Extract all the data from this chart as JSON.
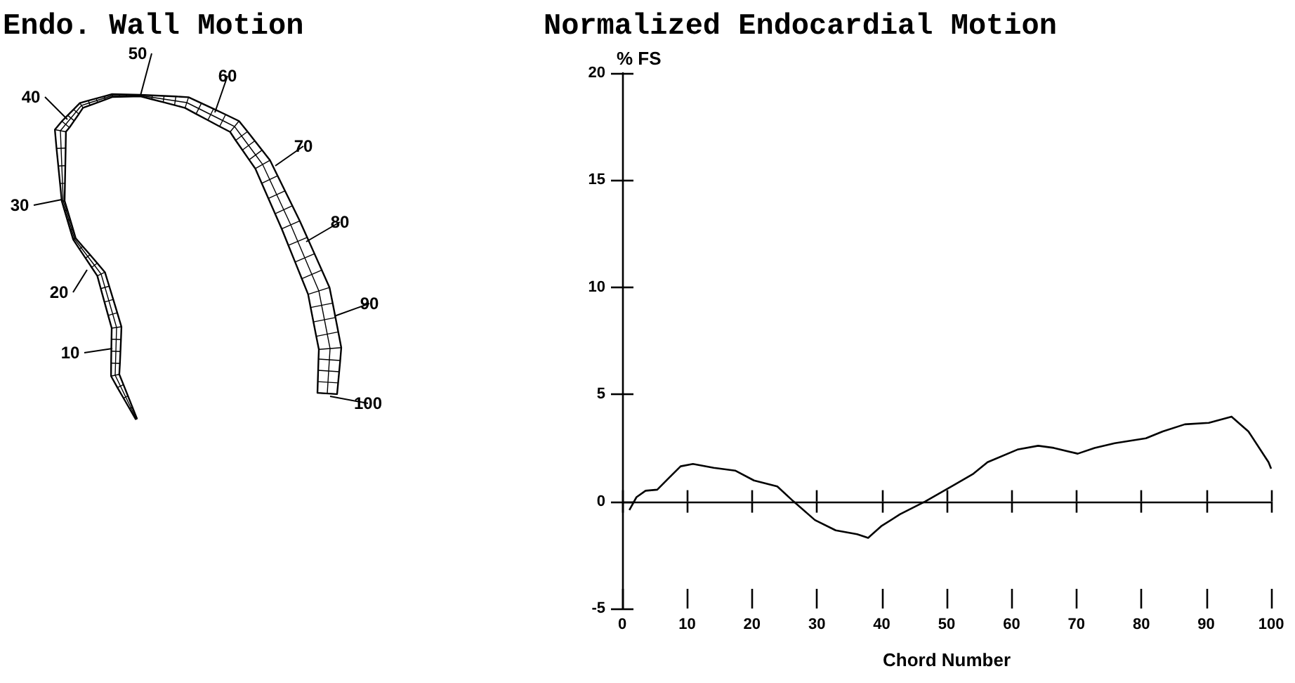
{
  "chart_data": [
    {
      "type": "other",
      "title": "Endo. Wall Motion",
      "annotations": [
        "10",
        "20",
        "30",
        "40",
        "50",
        "60",
        "70",
        "80",
        "90",
        "100"
      ]
    },
    {
      "type": "line",
      "title": "Normalized Endocardial Motion",
      "xlabel": "Chord Number",
      "ylabel": "% FS",
      "color": "#000000",
      "x": [
        1.1,
        2.2,
        3.6,
        5.4,
        7.2,
        9.0,
        10.9,
        14.1,
        17.4,
        20.3,
        23.9,
        26.4,
        29.7,
        32.9,
        36.2,
        37.9,
        39.9,
        42.8,
        46.7,
        51.1,
        54.0,
        56.3,
        60.9,
        64.1,
        66.5,
        70.2,
        72.8,
        75.9,
        80.7,
        83.3,
        86.7,
        90.4,
        93.9,
        96.5,
        99.6,
        100
      ],
      "values": [
        -0.4,
        0.2,
        0.5,
        0.55,
        1.1,
        1.64,
        1.75,
        1.57,
        1.44,
        0.98,
        0.7,
        0,
        -0.87,
        -1.35,
        -1.53,
        -1.7,
        -1.16,
        -0.6,
        0,
        0.76,
        1.27,
        1.83,
        2.42,
        2.6,
        2.5,
        2.23,
        2.5,
        2.72,
        2.95,
        3.27,
        3.6,
        3.67,
        3.96,
        3.27,
        1.83,
        1.53
      ],
      "xlim": [
        0,
        100
      ],
      "xticks": [
        0,
        10,
        20,
        30,
        40,
        50,
        60,
        70,
        80,
        90,
        100
      ],
      "ylim": [
        -5,
        20
      ],
      "yticks": [
        -5,
        0,
        5,
        10,
        15,
        20
      ],
      "ref_lines": [
        {
          "axis": "y",
          "value": 0
        }
      ],
      "marker": "none",
      "line_style": "solid"
    }
  ]
}
